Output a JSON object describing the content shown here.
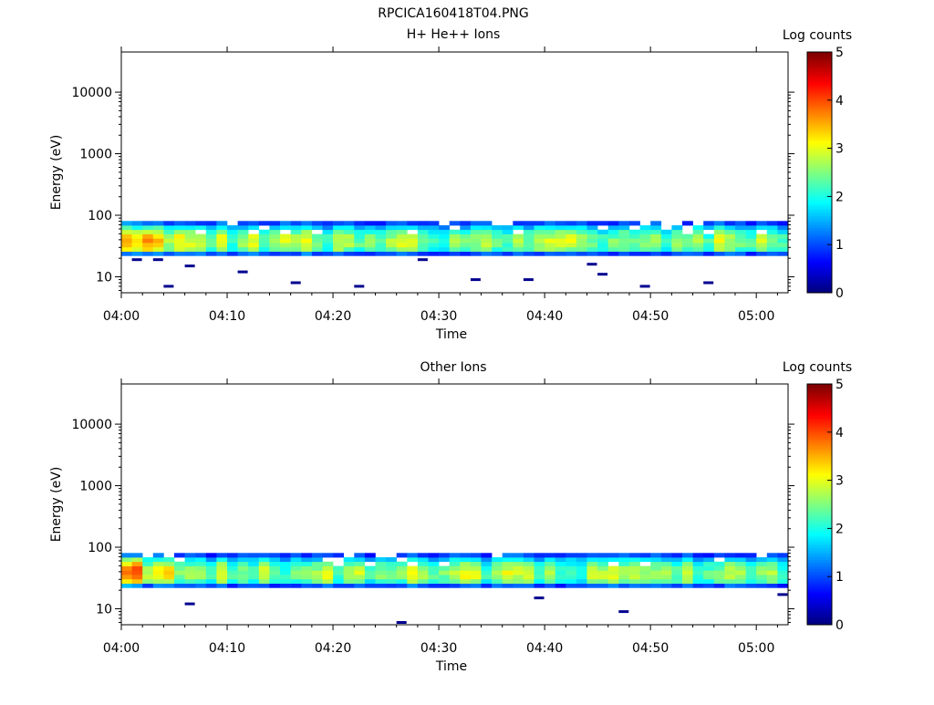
{
  "figure_title": "RPCICA160418T04.PNG",
  "chart_data": [
    {
      "type": "heatmap",
      "title": "H+ He++ Ions",
      "xlabel": "Time",
      "ylabel": "Energy (eV)",
      "x_range": [
        "04:00",
        "05:03"
      ],
      "x_ticks": [
        "04:00",
        "04:10",
        "04:20",
        "04:30",
        "04:40",
        "04:50",
        "05:00"
      ],
      "y_scale": "log",
      "y_range": [
        5.5,
        45000
      ],
      "y_ticks": [
        "10",
        "100",
        "1000",
        "10000"
      ],
      "colorbar": {
        "label": "Log counts",
        "range": [
          0,
          5
        ],
        "ticks": [
          "0",
          "1",
          "2",
          "3",
          "4",
          "5"
        ],
        "colormap": "jet"
      },
      "band": {
        "low_eV": 22,
        "high_eV": 95,
        "peak_eV": 38,
        "peak_log_counts_start": 3.6,
        "typical_peak_log_counts": 2.8
      },
      "sparse_low_energy_points": [
        {
          "t": "04:01",
          "energy_eV": 19
        },
        {
          "t": "04:03",
          "energy_eV": 19
        },
        {
          "t": "04:04",
          "energy_eV": 7
        },
        {
          "t": "04:06",
          "energy_eV": 15
        },
        {
          "t": "04:11",
          "energy_eV": 12
        },
        {
          "t": "04:16",
          "energy_eV": 8
        },
        {
          "t": "04:22",
          "energy_eV": 7
        },
        {
          "t": "04:28",
          "energy_eV": 19
        },
        {
          "t": "04:33",
          "energy_eV": 9
        },
        {
          "t": "04:38",
          "energy_eV": 9
        },
        {
          "t": "04:44",
          "energy_eV": 16
        },
        {
          "t": "04:45",
          "energy_eV": 11
        },
        {
          "t": "04:49",
          "energy_eV": 7
        },
        {
          "t": "04:55",
          "energy_eV": 8
        }
      ]
    },
    {
      "type": "heatmap",
      "title": "Other Ions",
      "xlabel": "Time",
      "ylabel": "Energy (eV)",
      "x_range": [
        "04:00",
        "05:03"
      ],
      "x_ticks": [
        "04:00",
        "04:10",
        "04:20",
        "04:30",
        "04:40",
        "04:50",
        "05:00"
      ],
      "y_scale": "log",
      "y_range": [
        5.5,
        45000
      ],
      "y_ticks": [
        "10",
        "100",
        "1000",
        "10000"
      ],
      "colorbar": {
        "label": "Log counts",
        "range": [
          0,
          5
        ],
        "ticks": [
          "0",
          "1",
          "2",
          "3",
          "4",
          "5"
        ],
        "colormap": "jet"
      },
      "band": {
        "low_eV": 22,
        "high_eV": 95,
        "peak_eV": 38,
        "peak_log_counts_start": 3.9,
        "typical_peak_log_counts": 2.8
      },
      "sparse_low_energy_points": [
        {
          "t": "04:06",
          "energy_eV": 12
        },
        {
          "t": "04:26",
          "energy_eV": 6
        },
        {
          "t": "04:39",
          "energy_eV": 15
        },
        {
          "t": "04:47",
          "energy_eV": 9
        },
        {
          "t": "05:02",
          "energy_eV": 17
        }
      ]
    }
  ]
}
